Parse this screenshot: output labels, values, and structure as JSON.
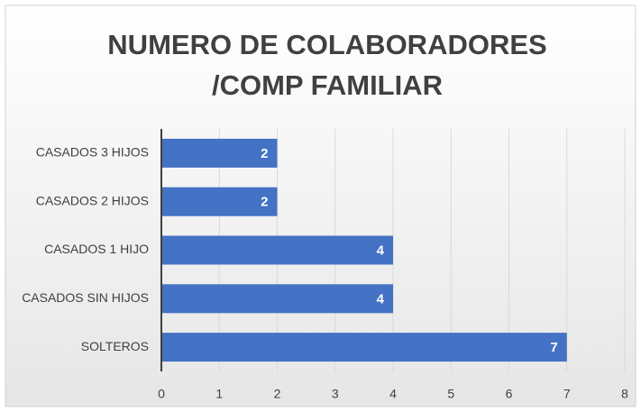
{
  "chart_data": {
    "type": "bar",
    "orientation": "horizontal",
    "title": [
      "NUMERO DE COLABORADORES",
      "/COMP FAMILIAR"
    ],
    "categories": [
      "CASADOS 3 HIJOS",
      "CASADOS 2 HIJOS",
      "CASADOS 1 HIJO",
      "CASADOS SIN HIJOS",
      "SOLTEROS"
    ],
    "values": [
      2,
      2,
      4,
      4,
      7
    ],
    "color": "#4472c4",
    "xlim": [
      0,
      8
    ],
    "xticks": [
      0,
      1,
      2,
      3,
      4,
      5,
      6,
      7,
      8
    ],
    "grid": true
  }
}
